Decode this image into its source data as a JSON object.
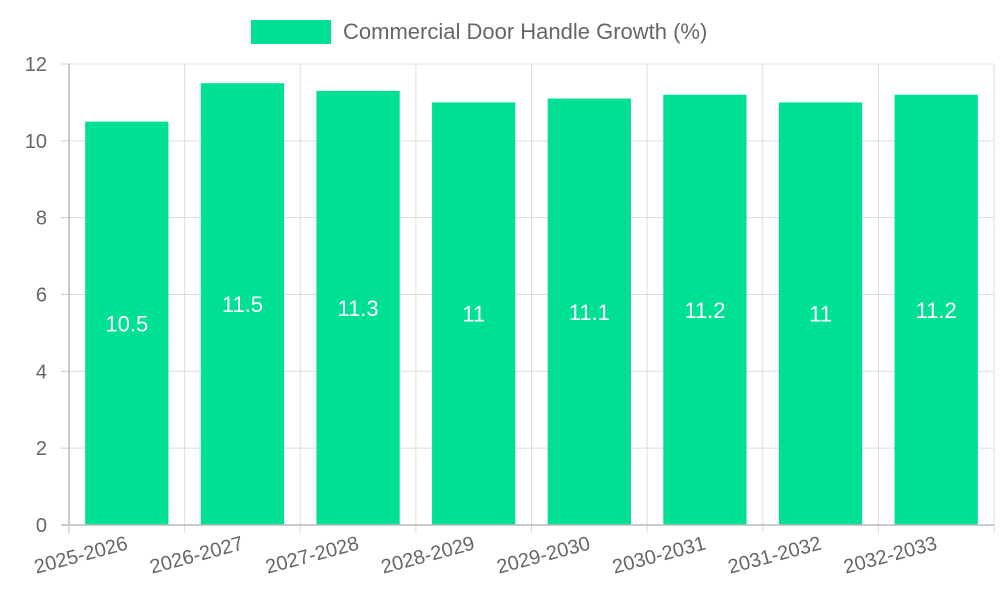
{
  "chart_data": {
    "type": "bar",
    "categories": [
      "2025-2026",
      "2026-2027",
      "2027-2028",
      "2028-2029",
      "2029-2030",
      "2030-2031",
      "2031-2032",
      "2032-2033"
    ],
    "series": [
      {
        "name": "Commercial Door Handle Growth (%)",
        "values": [
          10.5,
          11.5,
          11.3,
          11,
          11.1,
          11.2,
          11,
          11.2
        ],
        "color": "#00e092"
      }
    ],
    "ylim": [
      0,
      12
    ],
    "yticks": [
      0,
      2,
      4,
      6,
      8,
      10,
      12
    ],
    "xlabel": "",
    "ylabel": "",
    "grid": true,
    "legend_position": "top",
    "data_labels": true,
    "data_label_color": "#ffffff",
    "axis_text_color": "#666666",
    "grid_color": "#dddddd"
  }
}
